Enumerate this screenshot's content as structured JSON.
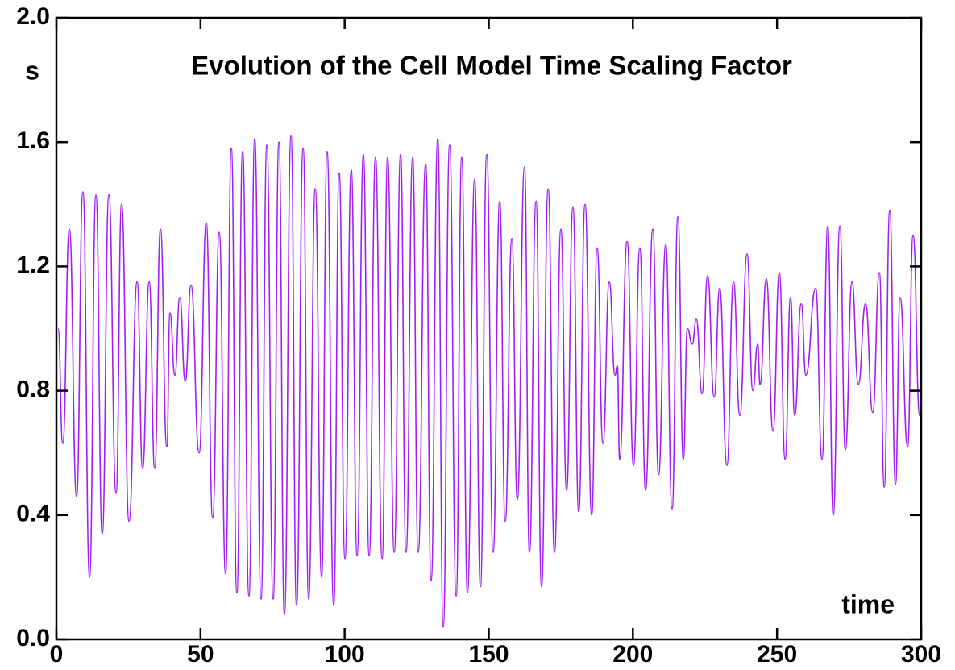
{
  "chart_data": {
    "type": "line",
    "title": "Evolution of the Cell Model Time Scaling Factor",
    "y_label": "s",
    "x_label": "time",
    "xlim": [
      0,
      300
    ],
    "ylim": [
      0,
      2
    ],
    "xticks": [
      0,
      50,
      100,
      150,
      200,
      250,
      300
    ],
    "yticks": [
      {
        "value": 0,
        "label": "0.0"
      },
      0.4,
      0.8,
      1.2,
      1.6,
      {
        "value": 2,
        "label": "2.0"
      }
    ],
    "series": [
      {
        "name": "s",
        "color": "#a020f0",
        "x": [
          0.6,
          2.2,
          4.5,
          7.0,
          9.2,
          11.5,
          13.7,
          15.9,
          18.2,
          20.7,
          22.6,
          25.2,
          28.0,
          29.9,
          32.2,
          34.1,
          36.1,
          38.3,
          39.4,
          41.1,
          42.8,
          44.7,
          46.7,
          49.5,
          52.0,
          54.2,
          56.5,
          58.7,
          60.7,
          62.6,
          64.6,
          66.8,
          68.8,
          71.0,
          73.0,
          75.2,
          77.2,
          79.1,
          81.4,
          83.3,
          85.6,
          87.5,
          89.8,
          92.0,
          93.9,
          96.2,
          98.1,
          100.1,
          102.3,
          104.3,
          106.5,
          108.5,
          110.7,
          113.0,
          114.9,
          117.2,
          119.4,
          121.3,
          123.6,
          125.5,
          128.1,
          130.0,
          132.3,
          134.2,
          136.4,
          138.7,
          140.6,
          142.6,
          145.1,
          147.1,
          149.3,
          151.5,
          153.8,
          155.7,
          158.0,
          159.9,
          162.4,
          164.1,
          166.4,
          168.3,
          170.6,
          172.8,
          175.0,
          177.0,
          179.2,
          181.2,
          183.4,
          185.7,
          187.6,
          189.6,
          191.8,
          193.8,
          194.6,
          195.4,
          198.0,
          200.2,
          202.4,
          204.4,
          206.9,
          208.9,
          211.4,
          213.6,
          215.6,
          217.5,
          218.9,
          220.6,
          222.0,
          224.0,
          225.9,
          228.2,
          230.1,
          232.6,
          234.9,
          237.1,
          239.6,
          241.6,
          243.3,
          244.1,
          246.3,
          248.6,
          250.8,
          252.8,
          254.7,
          256.1,
          258.4,
          260.0,
          263.4,
          265.6,
          267.6,
          269.5,
          271.8,
          273.7,
          276.0,
          278.2,
          280.7,
          283.2,
          285.5,
          287.2,
          289.1,
          291.1,
          292.7,
          295.3,
          297.2,
          299.5
        ],
        "values": [
          1.0,
          0.63,
          1.32,
          0.46,
          1.44,
          0.2,
          1.43,
          0.34,
          1.43,
          0.47,
          1.4,
          0.38,
          1.15,
          0.55,
          1.15,
          0.55,
          1.32,
          0.62,
          1.05,
          0.85,
          1.1,
          0.83,
          1.14,
          0.6,
          1.34,
          0.39,
          1.31,
          0.21,
          1.58,
          0.15,
          1.57,
          0.14,
          1.61,
          0.13,
          1.59,
          0.13,
          1.6,
          0.08,
          1.62,
          0.11,
          1.58,
          0.13,
          1.45,
          0.2,
          1.57,
          0.11,
          1.5,
          0.26,
          1.51,
          0.27,
          1.56,
          0.27,
          1.55,
          0.26,
          1.55,
          0.28,
          1.56,
          0.28,
          1.55,
          0.28,
          1.53,
          0.19,
          1.61,
          0.04,
          1.59,
          0.14,
          1.55,
          0.15,
          1.48,
          0.17,
          1.56,
          0.28,
          1.41,
          0.38,
          1.29,
          0.45,
          1.52,
          0.28,
          1.41,
          0.17,
          1.45,
          0.28,
          1.32,
          0.48,
          1.39,
          0.41,
          1.4,
          0.4,
          1.26,
          0.63,
          1.15,
          0.85,
          0.88,
          0.58,
          1.28,
          0.56,
          1.26,
          0.48,
          1.32,
          0.53,
          1.27,
          0.42,
          1.36,
          0.58,
          1.0,
          0.95,
          1.03,
          0.79,
          1.17,
          0.78,
          1.13,
          0.56,
          1.15,
          0.72,
          1.24,
          0.8,
          0.95,
          0.82,
          1.16,
          0.67,
          1.18,
          0.58,
          1.1,
          0.72,
          1.08,
          0.85,
          1.13,
          0.58,
          1.33,
          0.4,
          1.33,
          0.61,
          1.15,
          0.82,
          1.08,
          0.73,
          1.18,
          0.49,
          1.38,
          0.5,
          1.1,
          0.62,
          1.3,
          0.72
        ]
      }
    ]
  }
}
